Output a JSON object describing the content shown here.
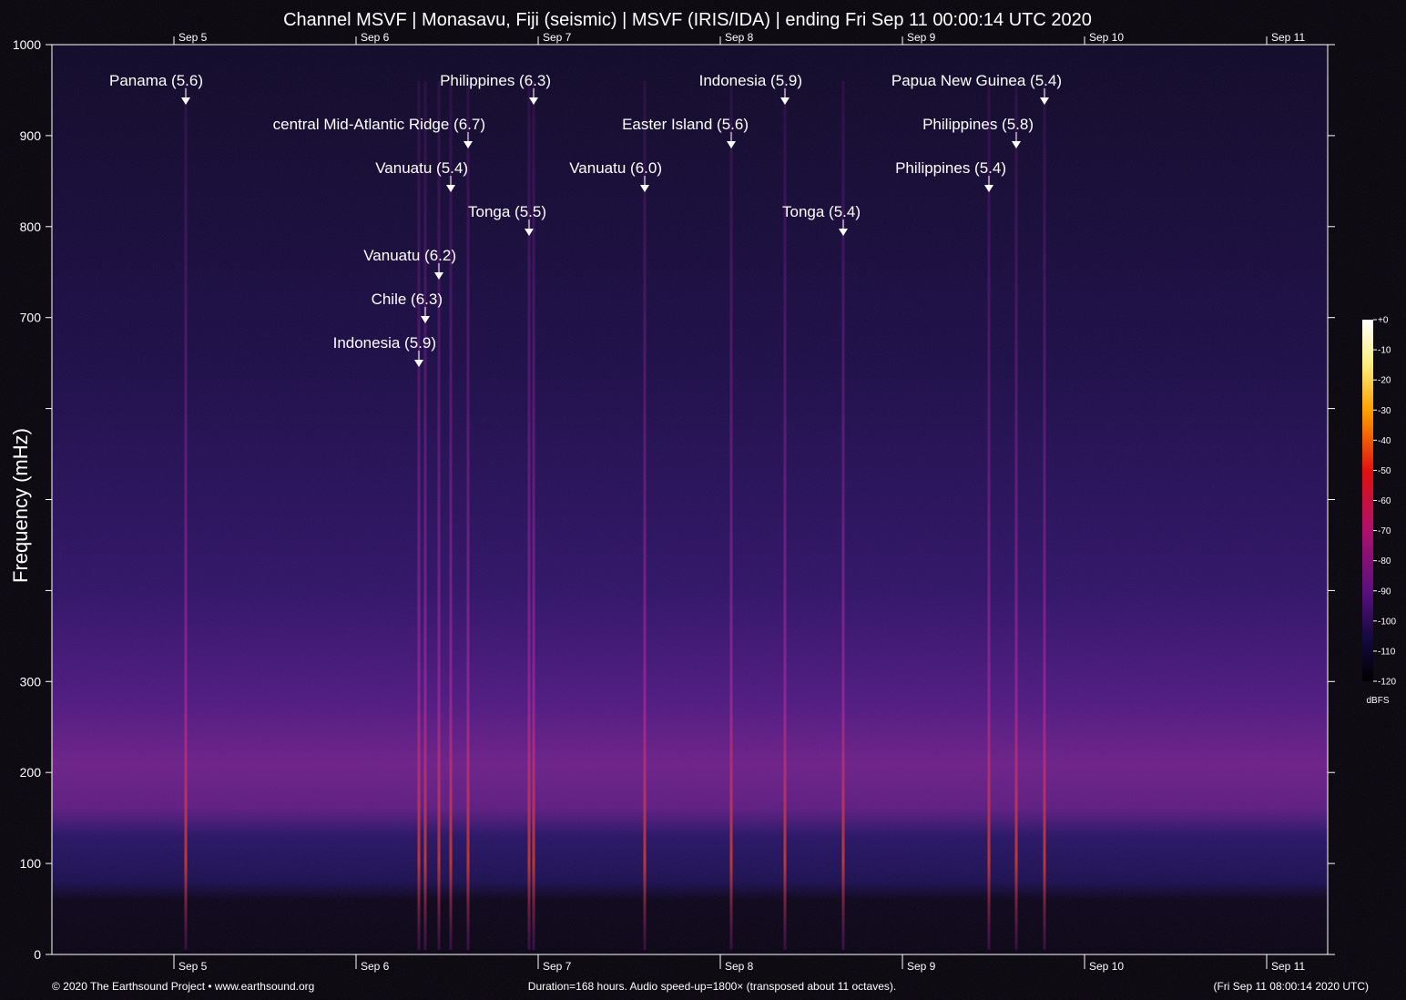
{
  "chart_data": {
    "type": "spectrogram",
    "title": "Channel MSVF | Monasavu, Fiji (seismic) | MSVF (IRIS/IDA) | ending Fri Sep 11 00:00:14 UTC 2020",
    "y_label": "Frequency (mHz)",
    "ylim": [
      0,
      1000
    ],
    "yticks": [
      0,
      100,
      200,
      300,
      700,
      800,
      900,
      1000
    ],
    "y_unlabeled_ticks": [
      400,
      500,
      600
    ],
    "xlim": [
      4.33,
      11.335
    ],
    "xticks": [
      {
        "value": 5,
        "label": "Sep 5"
      },
      {
        "value": 6,
        "label": "Sep 6"
      },
      {
        "value": 7,
        "label": "Sep 7"
      },
      {
        "value": 8,
        "label": "Sep 8"
      },
      {
        "value": 9,
        "label": "Sep 9"
      },
      {
        "value": 10,
        "label": "Sep 10"
      },
      {
        "value": 11,
        "label": "Sep 11"
      }
    ],
    "events": [
      {
        "label": "Panama (5.6)",
        "time": 5.065
      },
      {
        "label": "Indonesia (5.9)",
        "time": 6.345
      },
      {
        "label": "Chile (6.3)",
        "time": 6.38
      },
      {
        "label": "Vanuatu (6.2)",
        "time": 6.455
      },
      {
        "label": "Vanuatu (5.4)",
        "time": 6.52
      },
      {
        "label": "central Mid-Atlantic Ridge (6.7)",
        "time": 6.615
      },
      {
        "label": "Tonga (5.5)",
        "time": 6.95
      },
      {
        "label": "Philippines (6.3)",
        "time": 6.975
      },
      {
        "label": "Vanuatu (6.0)",
        "time": 7.585
      },
      {
        "label": "Easter Island (5.6)",
        "time": 8.06
      },
      {
        "label": "Indonesia (5.9)",
        "time": 8.355
      },
      {
        "label": "Tonga (5.4)",
        "time": 8.675
      },
      {
        "label": "Philippines (5.4)",
        "time": 9.475
      },
      {
        "label": "Philippines (5.8)",
        "time": 9.625
      },
      {
        "label": "Papua New Guinea (5.4)",
        "time": 9.78
      }
    ],
    "colorbar": {
      "label": "dBFS",
      "lim": [
        -120,
        0
      ],
      "ticks": [
        {
          "value": 0,
          "label": "+0"
        },
        -10,
        -20,
        -30,
        -40,
        -50,
        -60,
        -70,
        -80,
        -90,
        -100,
        -110,
        -120
      ]
    },
    "footer": {
      "left": "© 2020 The Earthsound Project • www.earthsound.org",
      "center": "Duration=168 hours. Audio speed-up=1800× (transposed about 11 octaves).",
      "right": "(Fri Sep 11 08:00:14 2020 UTC)"
    }
  }
}
